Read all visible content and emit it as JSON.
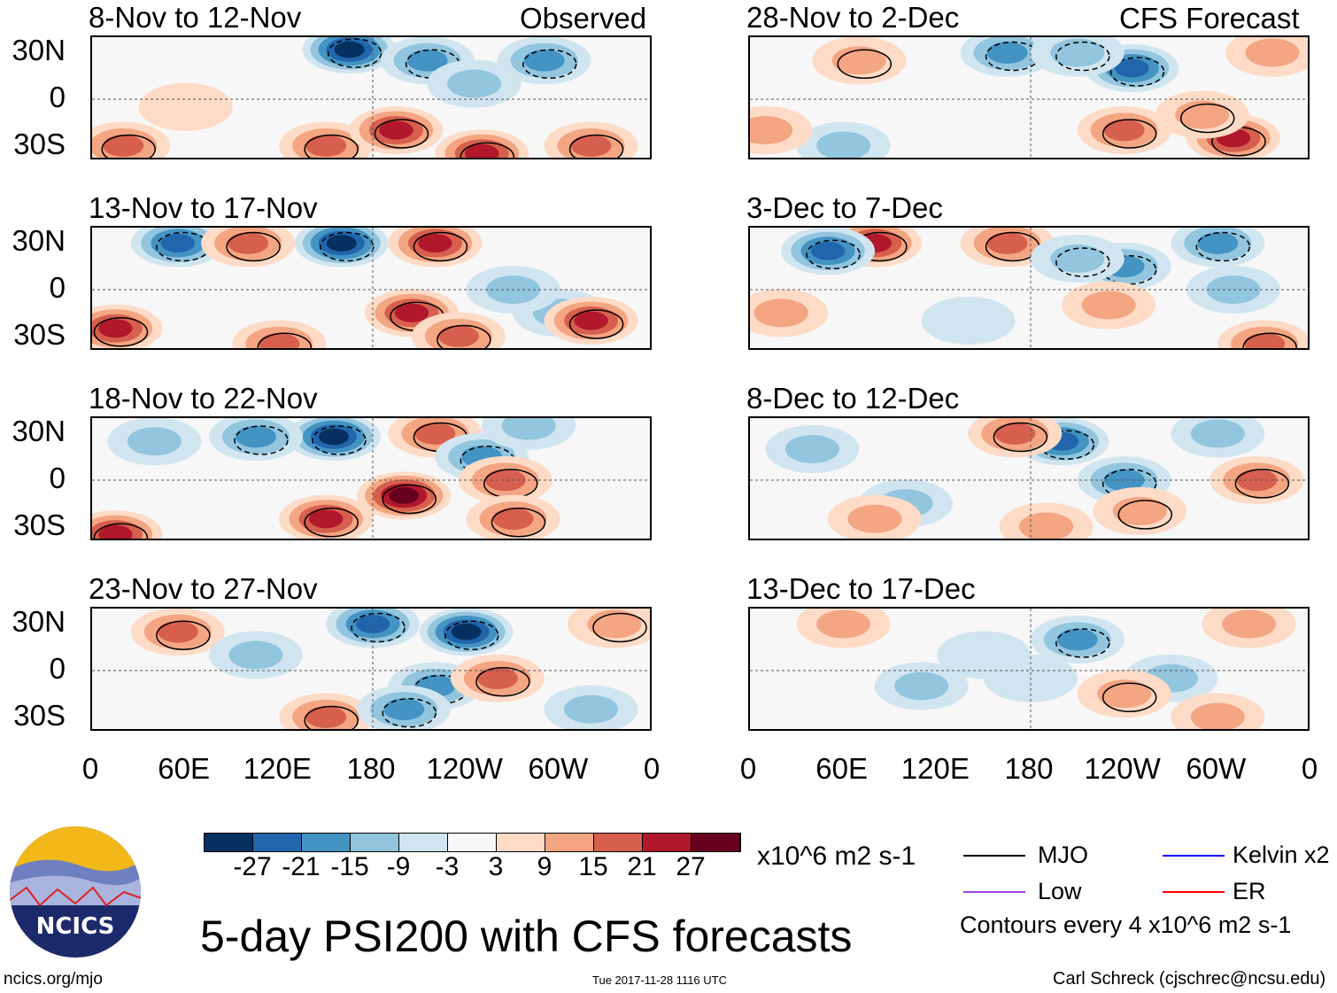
{
  "figure_title": "5-day PSI200 with CFS forecasts",
  "left_column_label": "Observed",
  "right_column_label": "CFS Forecast",
  "panels": [
    {
      "title": "8-Nov to 12-Nov",
      "blobs": [
        [
          165,
          32,
          -30
        ],
        [
          215,
          25,
          -18
        ],
        [
          290,
          25,
          -15
        ],
        [
          20,
          -30,
          20
        ],
        [
          150,
          -30,
          15
        ],
        [
          195,
          -20,
          25
        ],
        [
          250,
          -35,
          22
        ],
        [
          320,
          -30,
          20
        ],
        [
          60,
          -5,
          8
        ],
        [
          245,
          10,
          -10
        ]
      ]
    },
    {
      "title": "13-Nov to 17-Nov",
      "blobs": [
        [
          160,
          30,
          -32
        ],
        [
          55,
          30,
          -22
        ],
        [
          220,
          30,
          22
        ],
        [
          100,
          30,
          18
        ],
        [
          15,
          -25,
          24
        ],
        [
          205,
          -15,
          22
        ],
        [
          235,
          -30,
          20
        ],
        [
          300,
          -15,
          -12
        ],
        [
          320,
          -20,
          22
        ],
        [
          270,
          0,
          -10
        ],
        [
          120,
          -35,
          15
        ]
      ]
    },
    {
      "title": "18-Nov to 22-Nov",
      "blobs": [
        [
          155,
          28,
          -30
        ],
        [
          105,
          28,
          -15
        ],
        [
          220,
          30,
          20
        ],
        [
          250,
          15,
          -20
        ],
        [
          200,
          -10,
          28
        ],
        [
          150,
          -25,
          22
        ],
        [
          265,
          0,
          18
        ],
        [
          15,
          -35,
          22
        ],
        [
          270,
          -25,
          20
        ],
        [
          280,
          35,
          -12
        ],
        [
          40,
          25,
          -10
        ]
      ]
    },
    {
      "title": "23-Nov to 27-Nov",
      "blobs": [
        [
          180,
          30,
          -25
        ],
        [
          240,
          25,
          -28
        ],
        [
          220,
          -10,
          -15
        ],
        [
          150,
          -30,
          20
        ],
        [
          55,
          25,
          15
        ],
        [
          105,
          10,
          -12
        ],
        [
          260,
          -5,
          15
        ],
        [
          320,
          -25,
          -10
        ],
        [
          335,
          30,
          14
        ],
        [
          200,
          -25,
          -15
        ]
      ]
    },
    {
      "title": "28-Nov to 2-Dec",
      "blobs": [
        [
          245,
          20,
          -25
        ],
        [
          165,
          30,
          -18
        ],
        [
          210,
          30,
          -14
        ],
        [
          70,
          25,
          14
        ],
        [
          240,
          -20,
          18
        ],
        [
          310,
          -25,
          22
        ],
        [
          290,
          -10,
          14
        ],
        [
          335,
          30,
          10
        ],
        [
          60,
          -30,
          -10
        ],
        [
          10,
          -20,
          12
        ]
      ]
    },
    {
      "title": "3-Dec to 7-Dec",
      "blobs": [
        [
          80,
          30,
          25
        ],
        [
          50,
          25,
          -22
        ],
        [
          165,
          30,
          18
        ],
        [
          240,
          15,
          -20
        ],
        [
          210,
          20,
          -14
        ],
        [
          300,
          30,
          -15
        ],
        [
          310,
          0,
          -12
        ],
        [
          230,
          -10,
          12
        ],
        [
          330,
          -35,
          18
        ],
        [
          20,
          -15,
          10
        ],
        [
          140,
          -20,
          -8
        ]
      ]
    },
    {
      "title": "8-Dec to 12-Dec",
      "blobs": [
        [
          200,
          25,
          -25
        ],
        [
          240,
          0,
          -15
        ],
        [
          170,
          30,
          15
        ],
        [
          325,
          0,
          18
        ],
        [
          250,
          -20,
          14
        ],
        [
          100,
          -15,
          -10
        ],
        [
          80,
          -25,
          12
        ],
        [
          300,
          30,
          -12
        ],
        [
          40,
          20,
          -10
        ],
        [
          190,
          -30,
          10
        ]
      ]
    },
    {
      "title": "13-Dec to 17-Dec",
      "blobs": [
        [
          210,
          20,
          -15
        ],
        [
          270,
          -5,
          -12
        ],
        [
          240,
          -15,
          14
        ],
        [
          180,
          -5,
          -8
        ],
        [
          320,
          30,
          12
        ],
        [
          60,
          30,
          10
        ],
        [
          110,
          -10,
          -9
        ],
        [
          300,
          -30,
          10
        ],
        [
          150,
          10,
          -8
        ]
      ]
    }
  ],
  "y_ticks": [
    "30N",
    "0",
    "30S"
  ],
  "x_ticks": [
    "0",
    "60E",
    "120E",
    "180",
    "120W",
    "60W",
    "0"
  ],
  "colorbar": {
    "labels": [
      "-27",
      "-21",
      "-15",
      "-9",
      "-3",
      "3",
      "9",
      "15",
      "21",
      "27"
    ],
    "colors": [
      "#053061",
      "#2166ac",
      "#4393c3",
      "#92c5de",
      "#d1e5f0",
      "#f7f7f7",
      "#fddbc7",
      "#f4a582",
      "#d6604d",
      "#b2182b",
      "#67001f"
    ],
    "units": "x10^6 m2 s-1"
  },
  "legend": {
    "items": [
      {
        "label": "MJO",
        "color": "#000000"
      },
      {
        "label": "Kelvin x2",
        "color": "#0000ff"
      },
      {
        "label": "Low",
        "color": "#a040e0"
      },
      {
        "label": "ER",
        "color": "#ff0000"
      }
    ],
    "contour_note": "Contours every 4 x10^6 m2 s-1"
  },
  "logo_text": "NCICS",
  "footer": {
    "url": "ncics.org/mjo",
    "timestamp": "Tue 2017-11-28 1116 UTC",
    "credit": "Carl Schreck (cjschrec@ncsu.edu)"
  }
}
